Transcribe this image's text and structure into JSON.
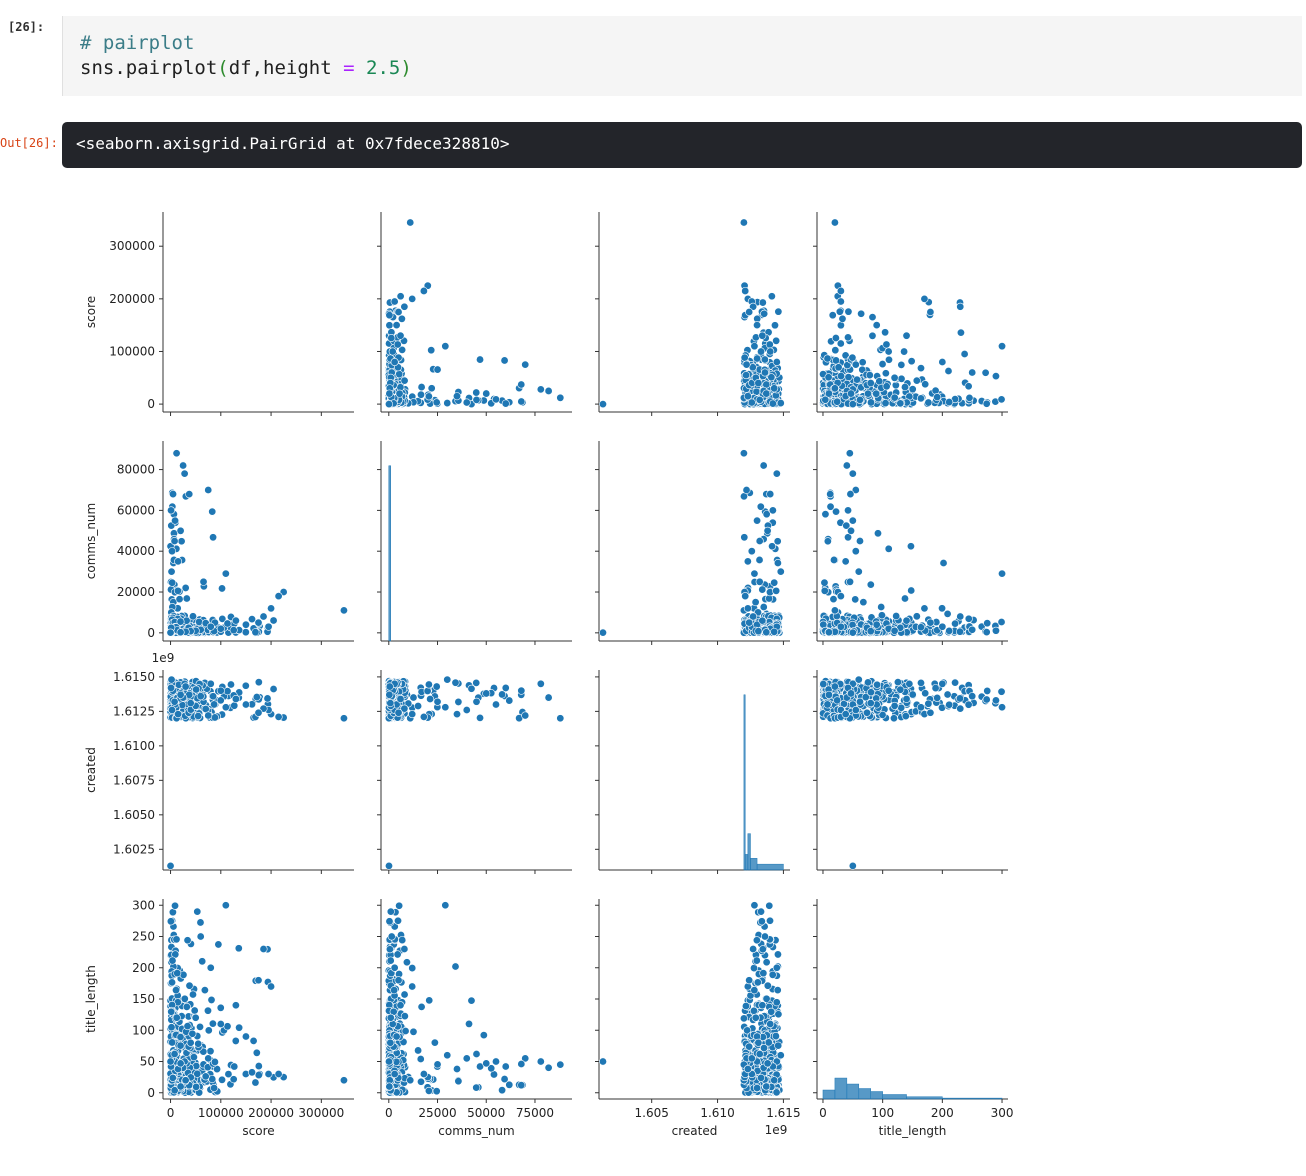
{
  "notebook": {
    "input_prompt": "[26]:",
    "code_comment": "# pairplot",
    "code_call": "sns.pairplot",
    "code_open": "(",
    "code_args": "df,height ",
    "code_eq": "=",
    "code_value": " 2.5",
    "code_close": ")",
    "output_prompt": "Out[26]:",
    "output_text": "<seaborn.axisgrid.PairGrid at 0x7fdece328810>"
  },
  "colors": {
    "point": "#1f77b4",
    "point_edge": "#ffffff",
    "axis": "#333333",
    "hist": "#1f77b4"
  },
  "chart_data": {
    "type": "scatter",
    "variables": [
      "score",
      "comms_num",
      "created",
      "title_length"
    ],
    "axes": {
      "score": {
        "range": [
          -15000,
          365000
        ],
        "ticks": [
          0,
          100000,
          200000,
          300000
        ],
        "tick_labels": [
          "0",
          "100000",
          "200000",
          "300000"
        ]
      },
      "comms_num": {
        "range": [
          -4000,
          94000
        ],
        "ticks": [
          0,
          20000,
          40000,
          60000,
          80000
        ],
        "tick_labels": [
          "0",
          "20000",
          "40000",
          "60000",
          "80000"
        ],
        "x_ticks": [
          0,
          25000,
          50000,
          75000
        ],
        "x_tick_labels": [
          "0",
          "25000",
          "50000",
          "75000"
        ]
      },
      "created": {
        "range": [
          1601000000,
          1615500000
        ],
        "ticks": [
          1602500000,
          1605000000,
          1607500000,
          1610000000,
          1612500000,
          1615000000
        ],
        "tick_labels": [
          "1.6025",
          "1.6050",
          "1.6075",
          "1.6100",
          "1.6125",
          "1.6150"
        ],
        "x_ticks": [
          1605000000,
          1610000000,
          1615000000
        ],
        "x_tick_labels": [
          "1.605",
          "1.610",
          "1.615"
        ],
        "offset_label": "1e9"
      },
      "title_length": {
        "range": [
          -10,
          310
        ],
        "ticks": [
          0,
          50,
          100,
          150,
          200,
          250,
          300
        ],
        "tick_labels": [
          "0",
          "50",
          "100",
          "150",
          "200",
          "250",
          "300"
        ],
        "x_ticks": [
          0,
          100,
          200,
          300
        ],
        "x_tick_labels": [
          "0",
          "100",
          "200",
          "300"
        ]
      }
    },
    "histograms": {
      "comms_num": {
        "peak": 64000,
        "bins": [
          [
            0,
            1000,
            64000
          ]
        ]
      },
      "created": {
        "bins": [
          [
            1612000000,
            1612100000,
            13500
          ],
          [
            1612100000,
            1612300000,
            1200
          ],
          [
            1612300000,
            1612500000,
            2800
          ],
          [
            1612500000,
            1613000000,
            900
          ],
          [
            1613000000,
            1615000000,
            450
          ]
        ]
      },
      "title_length": {
        "bins": [
          [
            0,
            20,
            6
          ],
          [
            20,
            40,
            14
          ],
          [
            40,
            60,
            10
          ],
          [
            60,
            80,
            7
          ],
          [
            80,
            100,
            5
          ],
          [
            100,
            140,
            3
          ],
          [
            140,
            200,
            1.5
          ],
          [
            200,
            300,
            0.6
          ]
        ]
      }
    },
    "samples": [
      {
        "score": 345000,
        "comms_num": 11000,
        "created": 1612000000,
        "title_length": 20
      },
      {
        "score": 225000,
        "comms_num": 20000,
        "created": 1612050000,
        "title_length": 25
      },
      {
        "score": 215000,
        "comms_num": 18000,
        "created": 1612100000,
        "title_length": 30
      },
      {
        "score": 200000,
        "comms_num": 12000,
        "created": 1612300000,
        "title_length": 170
      },
      {
        "score": 195000,
        "comms_num": 3000,
        "created": 1612600000,
        "title_length": 30
      },
      {
        "score": 185000,
        "comms_num": 8000,
        "created": 1612700000,
        "title_length": 230
      },
      {
        "score": 175000,
        "comms_num": 5000,
        "created": 1612400000,
        "title_length": 180
      },
      {
        "score": 110000,
        "comms_num": 29000,
        "created": 1612800000,
        "title_length": 300
      },
      {
        "score": 75000,
        "comms_num": 70000,
        "created": 1612200000,
        "title_length": 55
      },
      {
        "score": 12000,
        "comms_num": 88000,
        "created": 1612000000,
        "title_length": 45
      },
      {
        "score": 28000,
        "comms_num": 78000,
        "created": 1614500000,
        "title_length": 50
      },
      {
        "score": 25000,
        "comms_num": 82000,
        "created": 1613500000,
        "title_length": 40
      },
      {
        "score": 5000,
        "comms_num": 68000,
        "created": 1614000000,
        "title_length": 46
      },
      {
        "score": 9000,
        "comms_num": 55000,
        "created": 1613000000,
        "title_length": 50
      },
      {
        "score": 3000,
        "comms_num": 40000,
        "created": 1612600000,
        "title_length": 55
      },
      {
        "score": 2000,
        "comms_num": 30000,
        "created": 1614800000,
        "title_length": 60
      },
      {
        "score": 8000,
        "comms_num": 45000,
        "created": 1613200000,
        "title_length": 62
      },
      {
        "score": 1000,
        "comms_num": 60000,
        "created": 1614200000,
        "title_length": 42
      },
      {
        "score": 15000,
        "comms_num": 35000,
        "created": 1612300000,
        "title_length": 38
      },
      {
        "score": 20000,
        "comms_num": 50000,
        "created": 1613800000,
        "title_length": 47
      },
      {
        "score": 0,
        "comms_num": 100,
        "created": 1601300000,
        "title_length": 50
      },
      {
        "score": 150000,
        "comms_num": 4000,
        "created": 1613000000,
        "title_length": 90
      },
      {
        "score": 130000,
        "comms_num": 6000,
        "created": 1613400000,
        "title_length": 140
      },
      {
        "score": 100000,
        "comms_num": 2000,
        "created": 1614000000,
        "title_length": 110
      },
      {
        "score": 80000,
        "comms_num": 3000,
        "created": 1614500000,
        "title_length": 200
      },
      {
        "score": 60000,
        "comms_num": 1500,
        "created": 1613600000,
        "title_length": 250
      },
      {
        "score": 50000,
        "comms_num": 1000,
        "created": 1612900000,
        "title_length": 120
      },
      {
        "score": 40000,
        "comms_num": 800,
        "created": 1613100000,
        "title_length": 80
      },
      {
        "score": 30000,
        "comms_num": 500,
        "created": 1614300000,
        "title_length": 20
      },
      {
        "score": 20000,
        "comms_num": 300,
        "created": 1613700000,
        "title_length": 10
      }
    ]
  }
}
